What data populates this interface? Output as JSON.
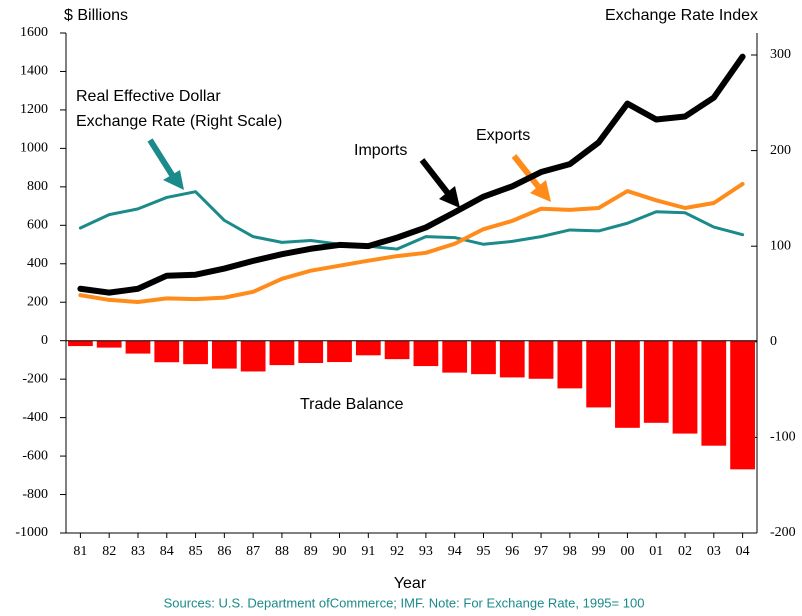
{
  "chart_data": {
    "type": "combo",
    "y_label": "$ Billions",
    "y2_label": "Exchange Rate Index",
    "x_label": "Year",
    "source": "Sources:  U.S. Department ofCommerce; IMF.  Note: For Exchange Rate, 1995= 100",
    "categories": [
      "81",
      "82",
      "83",
      "84",
      "85",
      "86",
      "87",
      "88",
      "89",
      "90",
      "91",
      "92",
      "93",
      "94",
      "95",
      "96",
      "97",
      "98",
      "99",
      "00",
      "01",
      "02",
      "03",
      "04"
    ],
    "ylim": [
      -1000,
      1600
    ],
    "yticks": [
      -1000,
      -800,
      -600,
      -400,
      -200,
      0,
      200,
      400,
      600,
      800,
      1000,
      1200,
      1400,
      1600
    ],
    "y2lim": [
      -200,
      323
    ],
    "y2ticks": [
      -200,
      -100,
      0,
      100,
      200,
      300
    ],
    "series": [
      {
        "name": "Imports",
        "type": "line",
        "color": "#000000",
        "width": 6,
        "values": [
          270,
          250,
          270,
          338,
          343,
          375,
          415,
          450,
          478,
          498,
          492,
          536,
          589,
          668,
          749,
          803,
          877,
          918,
          1031,
          1233,
          1150,
          1166,
          1264,
          1477
        ]
      },
      {
        "name": "Exports",
        "type": "line",
        "color": "#ff8c1a",
        "width": 4,
        "values": [
          237,
          212,
          201,
          220,
          216,
          224,
          254,
          322,
          364,
          390,
          416,
          440,
          457,
          504,
          580,
          623,
          686,
          680,
          690,
          778,
          730,
          690,
          716,
          815
        ]
      },
      {
        "name": [
          "Real Effective Dollar",
          "Exchange Rate (Right Scale)"
        ],
        "type": "line",
        "axis": "y2",
        "color": "#1a8a8a",
        "width": 3,
        "values": [
          119,
          133,
          139,
          151,
          157,
          127,
          110,
          104,
          106,
          102,
          100,
          97,
          110,
          109,
          102,
          105,
          110,
          117,
          116,
          124,
          136,
          135,
          120,
          112
        ]
      },
      {
        "name": "Trade Balance",
        "type": "bar",
        "color": "#ff0000",
        "values": [
          -28,
          -36,
          -67,
          -112,
          -122,
          -145,
          -160,
          -127,
          -116,
          -111,
          -76,
          -96,
          -132,
          -166,
          -174,
          -191,
          -198,
          -248,
          -347,
          -453,
          -427,
          -483,
          -546,
          -669
        ]
      }
    ]
  }
}
